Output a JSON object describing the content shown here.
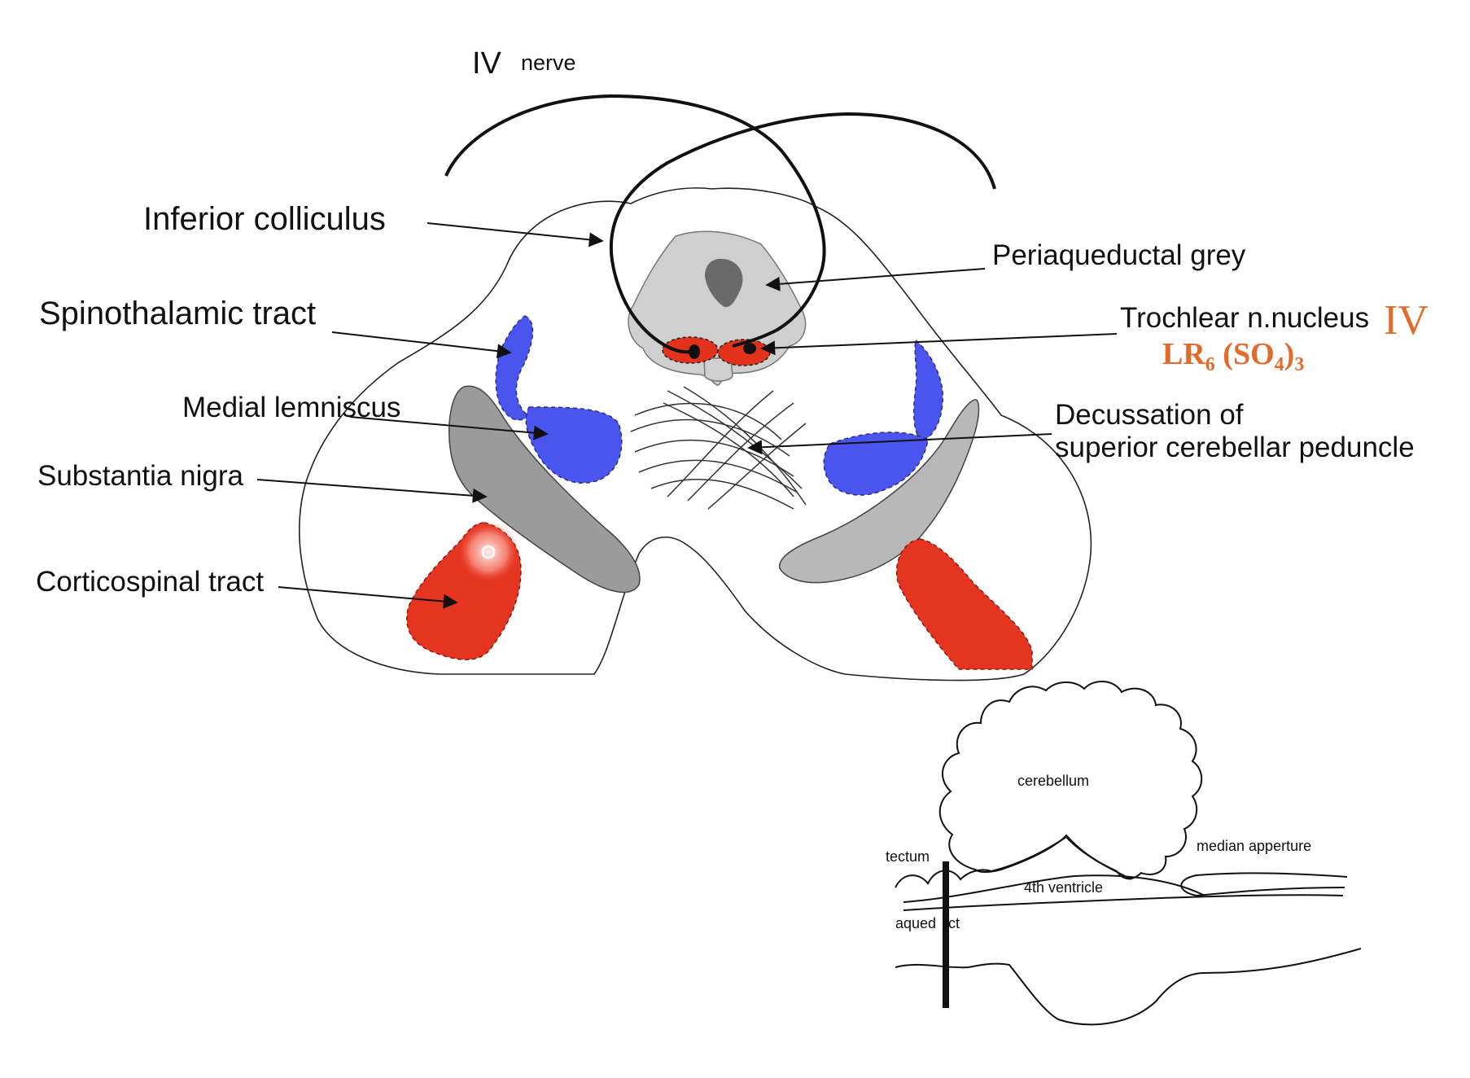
{
  "title_roman": "IV",
  "title_word": "nerve",
  "labels": {
    "inferior_colliculus": "Inferior colliculus",
    "spinothalamic_tract": "Spinothalamic tract",
    "medial_lemniscus": "Medial lemniscus",
    "substantia_nigra": "Substantia nigra",
    "corticospinal_tract": "Corticospinal tract",
    "periaqueductal_grey": "Periaqueductal grey",
    "trochlear_nucleus": "Trochlear n.nucleus",
    "decussation_line1": "Decussation of",
    "decussation_line2": "superior cerebellar peduncle"
  },
  "mnemonic": {
    "roman": "IV",
    "lr": "LR",
    "lr_sub": "6",
    "so_open": " (SO",
    "so_sub": "4",
    "so_close": ")",
    "so_close_sub": "3"
  },
  "inset": {
    "cerebellum": "cerebellum",
    "median_aperture": "median apperture",
    "tectum": "tectum",
    "fourth_ventricle": "4th ventricle",
    "aqueduct": "aqued   ct"
  },
  "colors": {
    "spinothalamic": "#4a55ee",
    "medial_lemniscus": "#4a55ee",
    "substantia_nigra": "#9b9b9b",
    "corticospinal": "#e53520",
    "periaqueductal": "#cfcfcf",
    "aqueduct": "#6a6a6a",
    "trochlear_nucleus": "#e2321c",
    "mnemonic": "#e26a2c"
  }
}
